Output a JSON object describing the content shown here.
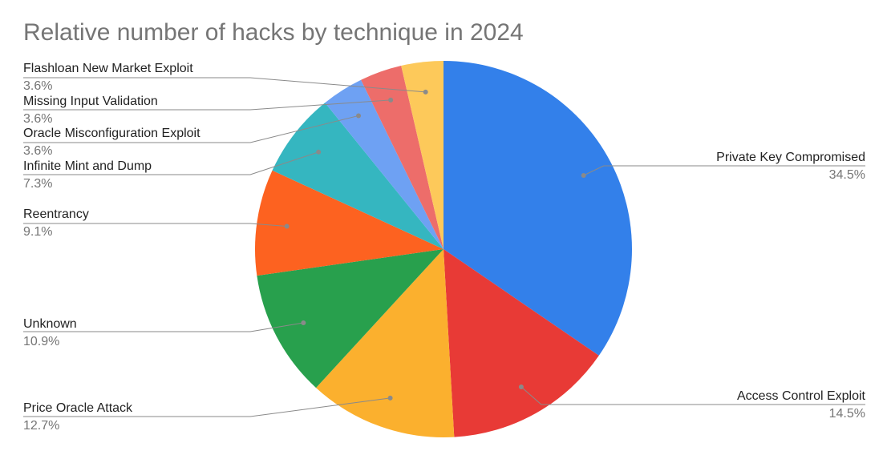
{
  "chart_data": {
    "type": "pie",
    "title": "Relative number of hacks by technique in 2024",
    "slices": [
      {
        "label": "Private Key Compromised",
        "value": 34.5,
        "pct_text": "34.5%",
        "color": "#3380ea"
      },
      {
        "label": "Access Control Exploit",
        "value": 14.5,
        "pct_text": "14.5%",
        "color": "#e83a36"
      },
      {
        "label": "Price Oracle Attack",
        "value": 12.7,
        "pct_text": "12.7%",
        "color": "#fbb02e"
      },
      {
        "label": "Unknown",
        "value": 10.9,
        "pct_text": "10.9%",
        "color": "#28a04d"
      },
      {
        "label": "Reentrancy",
        "value": 9.1,
        "pct_text": "9.1%",
        "color": "#fd6220"
      },
      {
        "label": "Infinite Mint and Dump",
        "value": 7.3,
        "pct_text": "7.3%",
        "color": "#35b6c0"
      },
      {
        "label": "Oracle Misconfiguration Exploit",
        "value": 3.6,
        "pct_text": "3.6%",
        "color": "#6ea1f3"
      },
      {
        "label": "Missing Input Validation",
        "value": 3.6,
        "pct_text": "3.6%",
        "color": "#ed6d6a"
      },
      {
        "label": "Flashloan New Market Exploit",
        "value": 3.6,
        "pct_text": "3.6%",
        "color": "#fdc95a"
      }
    ],
    "legend": "none",
    "label_style": "outside labels with leader lines"
  }
}
